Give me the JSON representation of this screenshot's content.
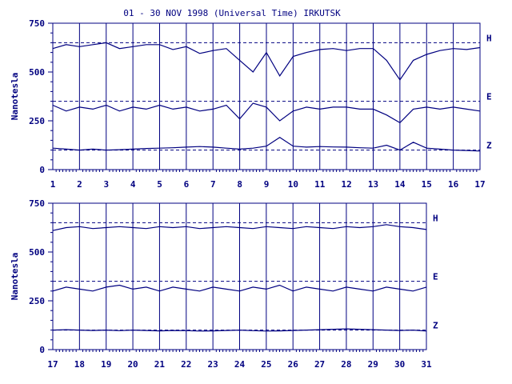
{
  "chart_data": [
    {
      "type": "line",
      "title": "01 - 30 NOV 1998 (Universal Time) IRKUTSK",
      "ylabel": "Nanotesla",
      "xlabel": "",
      "xlim": [
        1,
        17
      ],
      "ylim": [
        0,
        750
      ],
      "x_ticks": [
        1,
        2,
        3,
        4,
        5,
        6,
        7,
        8,
        9,
        10,
        11,
        12,
        13,
        14,
        15,
        16,
        17
      ],
      "y_ticks": [
        0,
        250,
        500,
        750
      ],
      "grid": "vertical",
      "reference_lines": [
        650,
        350,
        100
      ],
      "series": [
        {
          "name": "H",
          "x": [
            1,
            1.5,
            2,
            2.5,
            3,
            3.5,
            4,
            4.5,
            5,
            5.5,
            6,
            6.5,
            7,
            7.5,
            8,
            8.5,
            9,
            9.5,
            10,
            10.5,
            11,
            11.5,
            12,
            12.5,
            13,
            13.5,
            14,
            14.5,
            15,
            15.5,
            16,
            16.5,
            17
          ],
          "values": [
            620,
            640,
            630,
            640,
            650,
            620,
            630,
            640,
            640,
            615,
            630,
            595,
            610,
            620,
            560,
            500,
            600,
            480,
            580,
            600,
            615,
            620,
            610,
            620,
            620,
            560,
            460,
            560,
            590,
            610,
            620,
            615,
            625
          ]
        },
        {
          "name": "E",
          "x": [
            1,
            1.5,
            2,
            2.5,
            3,
            3.5,
            4,
            4.5,
            5,
            5.5,
            6,
            6.5,
            7,
            7.5,
            8,
            8.5,
            9,
            9.5,
            10,
            10.5,
            11,
            11.5,
            12,
            12.5,
            13,
            13.5,
            14,
            14.5,
            15,
            15.5,
            16,
            16.5,
            17
          ],
          "values": [
            330,
            300,
            320,
            310,
            330,
            300,
            320,
            310,
            330,
            310,
            320,
            300,
            310,
            330,
            260,
            340,
            320,
            250,
            300,
            320,
            310,
            320,
            320,
            310,
            310,
            280,
            240,
            310,
            320,
            310,
            320,
            310,
            300
          ]
        },
        {
          "name": "Z",
          "x": [
            1,
            1.5,
            2,
            2.5,
            3,
            3.5,
            4,
            4.5,
            5,
            5.5,
            6,
            6.5,
            7,
            7.5,
            8,
            8.5,
            9,
            9.5,
            10,
            10.5,
            11,
            11.5,
            12,
            12.5,
            13,
            13.5,
            14,
            14.5,
            15,
            15.5,
            16,
            16.5,
            17
          ],
          "values": [
            110,
            105,
            100,
            105,
            100,
            102,
            105,
            108,
            110,
            112,
            115,
            118,
            115,
            110,
            105,
            110,
            120,
            165,
            120,
            115,
            118,
            116,
            115,
            112,
            110,
            125,
            100,
            140,
            110,
            105,
            100,
            98,
            95
          ]
        }
      ]
    },
    {
      "type": "line",
      "title": "",
      "ylabel": "Nanotesla",
      "xlabel": "",
      "xlim": [
        17,
        31
      ],
      "ylim": [
        0,
        750
      ],
      "x_ticks": [
        17,
        18,
        19,
        20,
        21,
        22,
        23,
        24,
        25,
        26,
        27,
        28,
        29,
        30,
        31
      ],
      "y_ticks": [
        0,
        250,
        500,
        750
      ],
      "grid": "vertical",
      "reference_lines": [
        650,
        350,
        100
      ],
      "series": [
        {
          "name": "H",
          "x": [
            17,
            17.5,
            18,
            18.5,
            19,
            19.5,
            20,
            20.5,
            21,
            21.5,
            22,
            22.5,
            23,
            23.5,
            24,
            24.5,
            25,
            25.5,
            26,
            26.5,
            27,
            27.5,
            28,
            28.5,
            29,
            29.5,
            30,
            30.5,
            31
          ],
          "values": [
            610,
            625,
            630,
            620,
            625,
            630,
            625,
            620,
            630,
            625,
            630,
            620,
            625,
            630,
            625,
            620,
            630,
            625,
            620,
            630,
            625,
            620,
            630,
            625,
            630,
            640,
            630,
            625,
            615
          ]
        },
        {
          "name": "E",
          "x": [
            17,
            17.5,
            18,
            18.5,
            19,
            19.5,
            20,
            20.5,
            21,
            21.5,
            22,
            22.5,
            23,
            23.5,
            24,
            24.5,
            25,
            25.5,
            26,
            26.5,
            27,
            27.5,
            28,
            28.5,
            29,
            29.5,
            30,
            30.5,
            31
          ],
          "values": [
            300,
            320,
            310,
            300,
            320,
            330,
            310,
            320,
            300,
            320,
            310,
            300,
            320,
            310,
            300,
            320,
            310,
            330,
            300,
            320,
            310,
            300,
            320,
            310,
            300,
            320,
            310,
            300,
            320
          ]
        },
        {
          "name": "Z",
          "x": [
            17,
            17.5,
            18,
            18.5,
            19,
            19.5,
            20,
            20.5,
            21,
            21.5,
            22,
            22.5,
            23,
            23.5,
            24,
            24.5,
            25,
            25.5,
            26,
            26.5,
            27,
            27.5,
            28,
            28.5,
            29,
            29.5,
            30,
            30.5,
            31
          ],
          "values": [
            100,
            102,
            100,
            98,
            100,
            97,
            100,
            98,
            96,
            98,
            97,
            95,
            96,
            98,
            100,
            97,
            95,
            96,
            98,
            100,
            102,
            104,
            106,
            104,
            102,
            100,
            98,
            100,
            95
          ]
        }
      ]
    }
  ],
  "colors": {
    "plot": "#000080",
    "background": "#ffffff"
  }
}
